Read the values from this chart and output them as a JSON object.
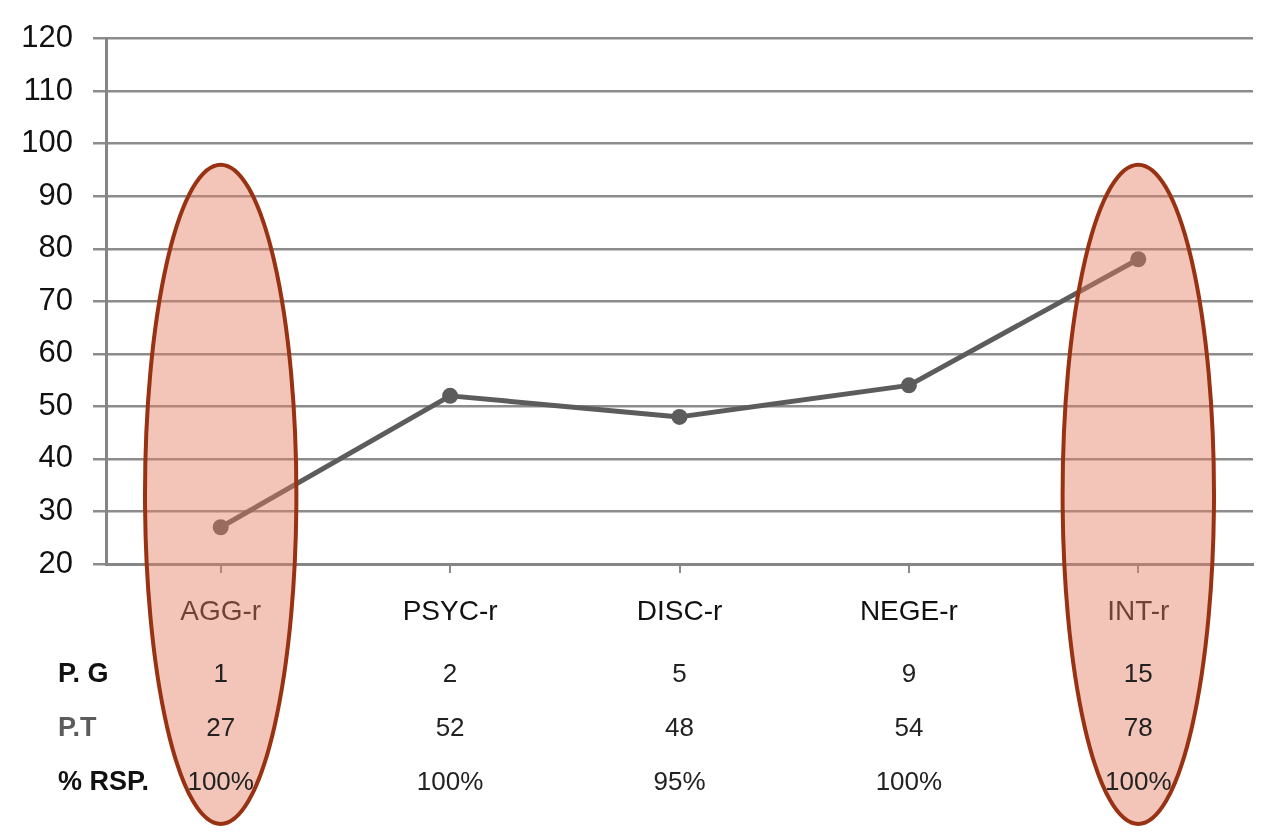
{
  "chart_data": {
    "type": "line",
    "categories": [
      "AGG-r",
      "PSYC-r",
      "DISC-r",
      "NEGE-r",
      "INT-r"
    ],
    "series": [
      {
        "name": "P.T",
        "color": "#5c5c5c",
        "values": [
          27,
          52,
          48,
          54,
          78
        ]
      }
    ],
    "ylim": [
      20,
      120
    ],
    "yticks": [
      20,
      30,
      40,
      50,
      60,
      70,
      80,
      90,
      100,
      110,
      120
    ],
    "grid": "y",
    "marker": "circle",
    "line_style": "solid",
    "data_labels": true,
    "bands": [
      {
        "axis": "x",
        "from": "AGG-r",
        "to": "AGG-r",
        "color": "#f2c5b8"
      },
      {
        "axis": "x",
        "from": "INT-r",
        "to": "INT-r",
        "color": "#f2c5b8"
      }
    ],
    "annotations": [
      "P. G",
      "1",
      "2",
      "5",
      "9",
      "15",
      "% RSP.",
      "100%",
      "100%",
      "95%",
      "100%",
      "100%"
    ]
  }
}
